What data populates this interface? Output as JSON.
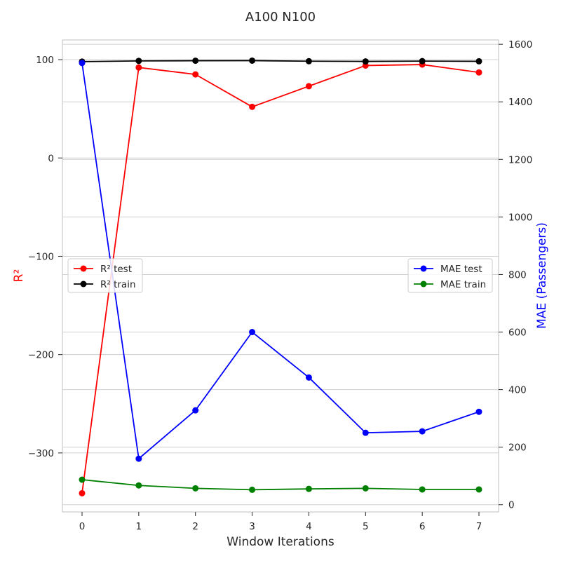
{
  "chart_data": {
    "type": "line",
    "title": "A100 N100",
    "xlabel": "Window Iterations",
    "x": [
      0,
      1,
      2,
      3,
      4,
      5,
      6,
      7
    ],
    "left_axis": {
      "label": "R²",
      "label_color": "#ff0000",
      "ylim": [
        -360,
        120
      ],
      "ticks": [
        100,
        0,
        -100,
        -200,
        -300
      ],
      "tick_labels": [
        "100",
        "0",
        "−100",
        "−200",
        "−300"
      ]
    },
    "right_axis": {
      "label": "MAE (Passengers)",
      "label_color": "#0000ff",
      "ylim": [
        -25,
        1615
      ],
      "ticks": [
        0,
        200,
        400,
        600,
        800,
        1000,
        1200,
        1400,
        1600
      ],
      "tick_labels": [
        "0",
        "200",
        "400",
        "600",
        "800",
        "1000",
        "1200",
        "1400",
        "1600"
      ]
    },
    "series": [
      {
        "name": "R² test",
        "axis": "left",
        "color": "#ff0000",
        "values": [
          -341,
          92,
          85,
          52,
          73,
          94,
          95,
          87
        ]
      },
      {
        "name": "R² train",
        "axis": "left",
        "color": "#000000",
        "values": [
          98,
          98.7,
          98.9,
          99,
          98.4,
          98.2,
          98.5,
          98.3
        ]
      },
      {
        "name": "MAE test",
        "axis": "right",
        "color": "#0000ff",
        "values": [
          1535,
          160,
          328,
          600,
          442,
          250,
          255,
          323
        ]
      },
      {
        "name": "MAE train",
        "axis": "right",
        "color": "#008000",
        "values": [
          87,
          67,
          57,
          52,
          55,
          57,
          53,
          53
        ]
      }
    ],
    "legends": [
      {
        "position": "center-left",
        "entries": [
          "R² test",
          "R² train"
        ]
      },
      {
        "position": "center-right",
        "entries": [
          "MAE test",
          "MAE train"
        ]
      }
    ]
  }
}
